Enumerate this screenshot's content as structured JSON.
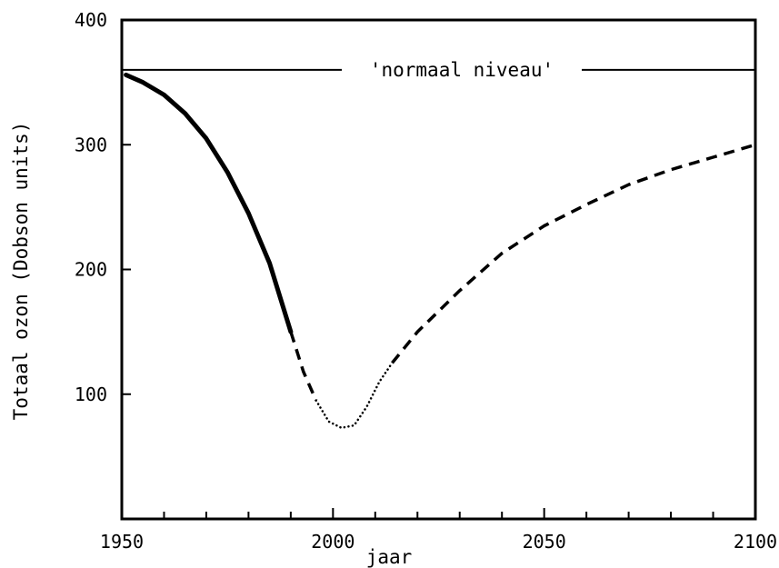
{
  "chart_data": {
    "type": "line",
    "title": "",
    "xlabel": "jaar",
    "ylabel": "Totaal ozon (Dobson units)",
    "xlim": [
      1950,
      2100
    ],
    "ylim": [
      0,
      400
    ],
    "x_ticks": [
      1950,
      2000,
      2050,
      2100
    ],
    "y_ticks": [
      100,
      200,
      300,
      400
    ],
    "x_minor_step": 10,
    "grid": false,
    "reference_line": {
      "label": "'normaal niveau'",
      "y": 360
    },
    "segments": [
      {
        "style": "solid",
        "x": [
          1951,
          1955,
          1960,
          1965,
          1970,
          1975,
          1980,
          1985,
          1990
        ],
        "y": [
          356,
          350,
          340,
          325,
          305,
          278,
          245,
          205,
          150
        ]
      },
      {
        "style": "dashed",
        "x": [
          1990,
          1993,
          1996
        ],
        "y": [
          150,
          118,
          95
        ]
      },
      {
        "style": "dotted",
        "x": [
          1996,
          1999,
          2002,
          2005,
          2008,
          2011,
          2014
        ],
        "y": [
          95,
          78,
          73,
          75,
          90,
          110,
          125
        ]
      },
      {
        "style": "dashed",
        "x": [
          2014,
          2020,
          2030,
          2040,
          2050,
          2060,
          2070,
          2080,
          2090,
          2100
        ],
        "y": [
          125,
          150,
          183,
          213,
          235,
          252,
          268,
          280,
          290,
          300
        ]
      }
    ]
  }
}
